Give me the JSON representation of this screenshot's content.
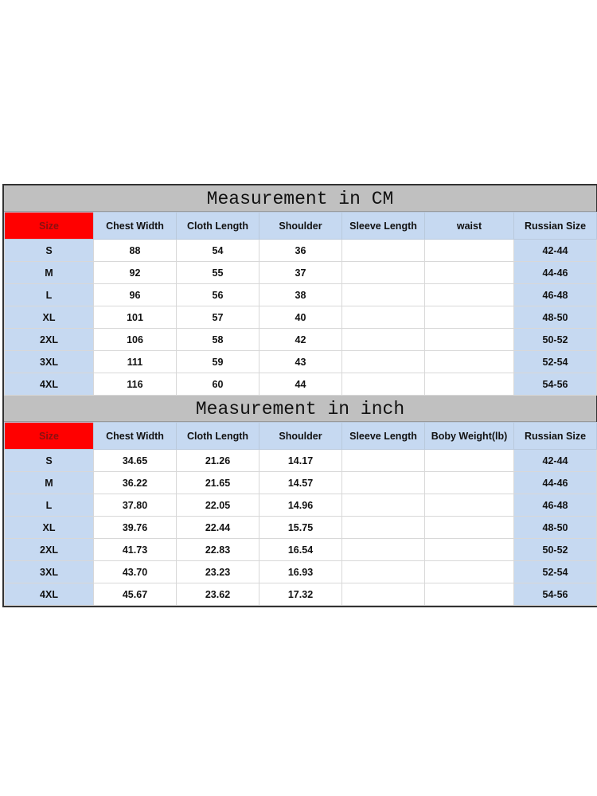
{
  "colors": {
    "header_bg": "#c6d9f1",
    "size_header_bg": "#ff0000",
    "title_bg": "#c0c0c0"
  },
  "cm": {
    "title": "Measurement in CM",
    "headers": [
      "Size",
      "Chest Width",
      "Cloth Length",
      "Shoulder",
      "Sleeve Length",
      "waist",
      "Russian Size"
    ],
    "rows": [
      [
        "S",
        "88",
        "54",
        "36",
        "",
        "",
        "42-44"
      ],
      [
        "M",
        "92",
        "55",
        "37",
        "",
        "",
        "44-46"
      ],
      [
        "L",
        "96",
        "56",
        "38",
        "",
        "",
        "46-48"
      ],
      [
        "XL",
        "101",
        "57",
        "40",
        "",
        "",
        "48-50"
      ],
      [
        "2XL",
        "106",
        "58",
        "42",
        "",
        "",
        "50-52"
      ],
      [
        "3XL",
        "111",
        "59",
        "43",
        "",
        "",
        "52-54"
      ],
      [
        "4XL",
        "116",
        "60",
        "44",
        "",
        "",
        "54-56"
      ]
    ]
  },
  "inch": {
    "title": "Measurement in inch",
    "headers": [
      "Size",
      "Chest Width",
      "Cloth Length",
      "Shoulder",
      "Sleeve Length",
      "Boby Weight(lb)",
      "Russian Size"
    ],
    "rows": [
      [
        "S",
        "34.65",
        "21.26",
        "14.17",
        "",
        "",
        "42-44"
      ],
      [
        "M",
        "36.22",
        "21.65",
        "14.57",
        "",
        "",
        "44-46"
      ],
      [
        "L",
        "37.80",
        "22.05",
        "14.96",
        "",
        "",
        "46-48"
      ],
      [
        "XL",
        "39.76",
        "22.44",
        "15.75",
        "",
        "",
        "48-50"
      ],
      [
        "2XL",
        "41.73",
        "22.83",
        "16.54",
        "",
        "",
        "50-52"
      ],
      [
        "3XL",
        "43.70",
        "23.23",
        "16.93",
        "",
        "",
        "52-54"
      ],
      [
        "4XL",
        "45.67",
        "23.62",
        "17.32",
        "",
        "",
        "54-56"
      ]
    ]
  }
}
